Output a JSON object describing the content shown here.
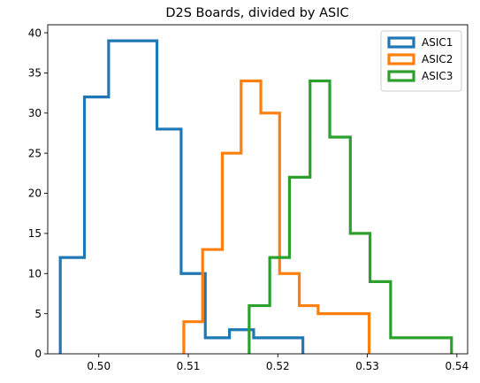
{
  "chart_data": {
    "type": "histogram",
    "title": "D2S Boards, divided by ASIC",
    "xlabel": "",
    "ylabel": "",
    "xlim": [
      0.4943,
      0.5412
    ],
    "ylim": [
      0,
      41
    ],
    "x_ticks": [
      0.5,
      0.51,
      0.52,
      0.53,
      0.54
    ],
    "x_tick_labels": [
      "0.50",
      "0.51",
      "0.52",
      "0.53",
      "0.54"
    ],
    "y_ticks": [
      0,
      5,
      10,
      15,
      20,
      25,
      30,
      35,
      40
    ],
    "y_tick_labels": [
      "0",
      "5",
      "10",
      "15",
      "20",
      "25",
      "30",
      "35",
      "40"
    ],
    "grid": false,
    "legend_position": "top-right",
    "histtype": "step",
    "series": [
      {
        "name": "ASIC1",
        "color": "#1f77b4",
        "bin_edges": [
          0.4957,
          0.4984,
          0.5011,
          0.5038,
          0.5065,
          0.5092,
          0.5119,
          0.5146,
          0.5173,
          0.52,
          0.5228
        ],
        "counts": [
          12,
          32,
          39,
          39,
          28,
          10,
          2,
          3,
          2,
          2
        ]
      },
      {
        "name": "ASIC2",
        "color": "#ff7f0e",
        "bin_edges": [
          0.5095,
          0.5116,
          0.5138,
          0.5159,
          0.5181,
          0.5202,
          0.5224,
          0.5245,
          0.5267,
          0.5288,
          0.5302
        ],
        "counts": [
          4,
          13,
          25,
          34,
          30,
          10,
          6,
          5,
          5,
          5
        ]
      },
      {
        "name": "ASIC3",
        "color": "#2ca02c",
        "bin_edges": [
          0.5168,
          0.5191,
          0.5213,
          0.5236,
          0.5258,
          0.5281,
          0.5303,
          0.5326,
          0.5348,
          0.5371,
          0.5394
        ],
        "counts": [
          6,
          12,
          22,
          34,
          27,
          15,
          9,
          2,
          2,
          2
        ]
      }
    ]
  }
}
